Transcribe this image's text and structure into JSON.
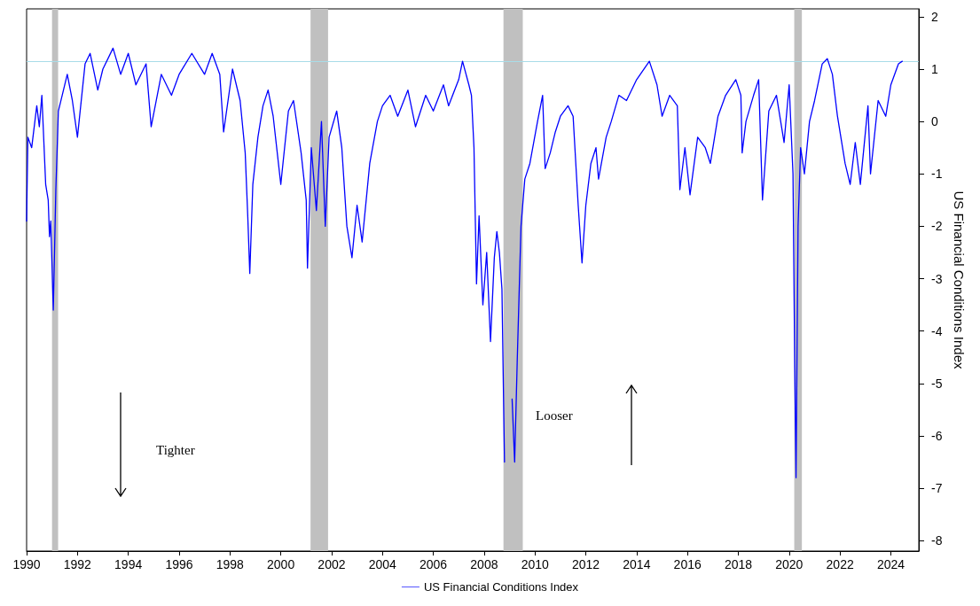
{
  "chart_data": {
    "type": "line",
    "ylabel": "US Financial Conditions Index",
    "xlim": [
      1990,
      2025.1
    ],
    "xticks": [
      1990,
      1992,
      1994,
      1996,
      1998,
      2000,
      2002,
      2004,
      2006,
      2008,
      2010,
      2012,
      2014,
      2016,
      2018,
      2020,
      2022,
      2024
    ],
    "ylim": [
      -8.2,
      2.15
    ],
    "yticks": [
      -8,
      -7,
      -6,
      -5,
      -4,
      -3,
      -2,
      -1,
      0,
      1,
      2
    ],
    "grid": false,
    "legend": "bottom",
    "marker": "none",
    "line_style": "solid",
    "series": [
      {
        "name": "US Financial Conditions Index",
        "color": "#0000ff",
        "x": [
          1990.0,
          1990.05,
          1990.2,
          1990.4,
          1990.5,
          1990.6,
          1990.75,
          1990.85,
          1990.9,
          1990.95,
          1991.05,
          1991.15,
          1991.25,
          1991.4,
          1991.6,
          1991.8,
          1992.0,
          1992.3,
          1992.5,
          1992.8,
          1993.0,
          1993.4,
          1993.7,
          1994.0,
          1994.3,
          1994.7,
          1994.9,
          1995.3,
          1995.7,
          1996.0,
          1996.5,
          1997.0,
          1997.3,
          1997.6,
          1997.75,
          1998.1,
          1998.4,
          1998.6,
          1998.7,
          1998.78,
          1998.9,
          1999.1,
          1999.3,
          1999.5,
          1999.7,
          2000.0,
          2000.3,
          2000.5,
          2000.8,
          2001.0,
          2001.05,
          2001.2,
          2001.4,
          2001.6,
          2001.75,
          2001.9,
          2002.2,
          2002.4,
          2002.6,
          2002.8,
          2003.0,
          2003.2,
          2003.5,
          2003.8,
          2004.0,
          2004.3,
          2004.6,
          2005.0,
          2005.3,
          2005.7,
          2006.0,
          2006.4,
          2006.6,
          2007.0,
          2007.15,
          2007.4,
          2007.5,
          2007.6,
          2007.7,
          2007.8,
          2007.95,
          2008.1,
          2008.25,
          2008.4,
          2008.5,
          2008.6,
          2008.7,
          2008.8,
          2008.85,
          2009.0,
          2009.1,
          2009.2,
          2009.3,
          2009.45,
          2009.6,
          2009.8,
          2010.1,
          2010.3,
          2010.4,
          2010.6,
          2010.8,
          2011.0,
          2011.3,
          2011.5,
          2011.7,
          2011.85,
          2012.0,
          2012.2,
          2012.4,
          2012.5,
          2012.8,
          2013.0,
          2013.3,
          2013.6,
          2014.0,
          2014.5,
          2014.8,
          2015.0,
          2015.3,
          2015.6,
          2015.7,
          2015.9,
          2016.1,
          2016.4,
          2016.7,
          2016.9,
          2017.2,
          2017.5,
          2017.9,
          2018.1,
          2018.15,
          2018.3,
          2018.6,
          2018.8,
          2018.95,
          2019.2,
          2019.5,
          2019.8,
          2020.0,
          2020.15,
          2020.22,
          2020.27,
          2020.35,
          2020.45,
          2020.6,
          2020.8,
          2021.0,
          2021.3,
          2021.5,
          2021.7,
          2021.9,
          2022.2,
          2022.4,
          2022.6,
          2022.8,
          2023.1,
          2023.2,
          2023.5,
          2023.8,
          2024.0,
          2024.3,
          2024.45
        ],
        "values": [
          -1.9,
          -0.3,
          -0.5,
          0.3,
          -0.1,
          0.5,
          -1.2,
          -1.5,
          -2.2,
          -1.9,
          -3.6,
          -1.3,
          0.2,
          0.5,
          0.9,
          0.4,
          -0.3,
          1.1,
          1.3,
          0.6,
          1.0,
          1.4,
          0.9,
          1.3,
          0.7,
          1.1,
          -0.1,
          0.9,
          0.5,
          0.9,
          1.3,
          0.9,
          1.3,
          0.9,
          -0.2,
          1.0,
          0.4,
          -0.6,
          -1.8,
          -2.9,
          -1.2,
          -0.3,
          0.3,
          0.6,
          0.1,
          -1.2,
          0.2,
          0.4,
          -0.6,
          -1.5,
          -2.8,
          -0.5,
          -1.7,
          0.0,
          -2.0,
          -0.3,
          0.2,
          -0.5,
          -2.0,
          -2.6,
          -1.6,
          -2.3,
          -0.8,
          0.0,
          0.3,
          0.5,
          0.1,
          0.6,
          -0.1,
          0.5,
          0.2,
          0.7,
          0.3,
          0.8,
          1.15,
          0.7,
          0.5,
          -0.5,
          -3.1,
          -1.8,
          -3.5,
          -2.5,
          -4.2,
          -2.6,
          -2.1,
          -2.5,
          -3.2,
          -6.5,
          null,
          null,
          -5.3,
          -6.5,
          -4.6,
          -2.0,
          -1.1,
          -0.8,
          0.0,
          0.5,
          -0.9,
          -0.6,
          -0.2,
          0.1,
          0.3,
          0.1,
          -1.6,
          -2.7,
          -1.6,
          -0.8,
          -0.5,
          -1.1,
          -0.3,
          0.0,
          0.5,
          0.4,
          0.8,
          1.15,
          0.7,
          0.1,
          0.5,
          0.3,
          -1.3,
          -0.5,
          -1.4,
          -0.3,
          -0.5,
          -0.8,
          0.1,
          0.5,
          0.8,
          0.5,
          -0.6,
          0.0,
          0.5,
          0.8,
          -1.5,
          0.2,
          0.5,
          -0.4,
          0.7,
          -1.0,
          -4.7,
          -6.8,
          -2.0,
          -0.5,
          -1.0,
          0.0,
          0.4,
          1.1,
          1.2,
          0.9,
          0.1,
          -0.8,
          -1.2,
          -0.4,
          -1.2,
          0.3,
          -1.0,
          0.4,
          0.1,
          0.7,
          1.1,
          1.15
        ]
      }
    ],
    "ref_lines": [
      {
        "axis": "y",
        "value": 1.15,
        "color": "#a8dce8",
        "line_style": "solid"
      }
    ],
    "bands": [
      {
        "axis": "x",
        "from": 1991.0,
        "to": 1991.24,
        "color": "#c0c0c0"
      },
      {
        "axis": "x",
        "from": 2001.17,
        "to": 2001.86,
        "color": "#c0c0c0"
      },
      {
        "axis": "x",
        "from": 2008.76,
        "to": 2009.52,
        "color": "#c0c0c0"
      },
      {
        "axis": "x",
        "from": 2020.2,
        "to": 2020.5,
        "color": "#c0c0c0"
      }
    ],
    "annotations": [
      "Tighter",
      "Looser"
    ]
  }
}
